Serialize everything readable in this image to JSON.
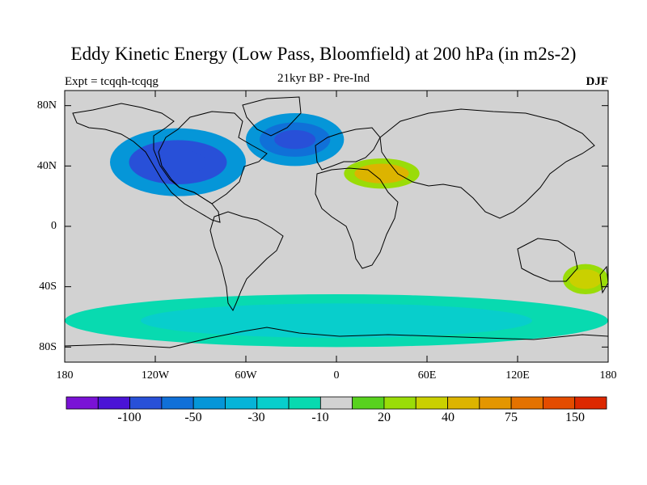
{
  "header": {
    "title": "Eddy Kinetic Energy (Low Pass, Bloomfield) at 200 hPa (in m2s-2)",
    "experiment": "Expt = tcqqh-tcqqg",
    "subtitle": "21kyr BP - Pre-Ind",
    "season": "DJF"
  },
  "chart_data": {
    "type": "heatmap",
    "projection": "cylindrical-equidistant",
    "title": "Eddy Kinetic Energy (Low Pass, Bloomfield) at 200 hPa (in m2s-2)",
    "x_axis": {
      "ticks": [
        "180",
        "120W",
        "60W",
        "0",
        "60E",
        "120E",
        "180"
      ],
      "range": [
        -180,
        180
      ]
    },
    "y_axis": {
      "ticks": [
        "80N",
        "40N",
        "0",
        "40S",
        "80S"
      ],
      "range": [
        -90,
        90
      ]
    },
    "colorbar": {
      "labels": [
        "-100",
        "-50",
        "-30",
        "-10",
        "20",
        "40",
        "75",
        "150"
      ],
      "colors": [
        "#7a12d6",
        "#4a14d6",
        "#2850d8",
        "#1070d8",
        "#0596d8",
        "#06b4d8",
        "#08cecc",
        "#08dab0",
        "#d2d2d2",
        "#58d21e",
        "#9adc08",
        "#cad000",
        "#dcb400",
        "#e49600",
        "#e47200",
        "#e44c00",
        "#dc2800"
      ]
    },
    "features": [
      {
        "name": "North Pacific / North America negative anomaly",
        "lon": [
          -150,
          -60
        ],
        "lat": [
          20,
          65
        ],
        "value": -70
      },
      {
        "name": "North Atlantic negative anomaly",
        "lon": [
          -60,
          5
        ],
        "lat": [
          40,
          75
        ],
        "value": -60
      },
      {
        "name": "Mediterranean / Middle East positive anomaly",
        "lon": [
          5,
          55
        ],
        "lat": [
          25,
          45
        ],
        "value": 40
      },
      {
        "name": "Southern Ocean negative band",
        "lon": [
          -180,
          180
        ],
        "lat": [
          -80,
          -45
        ],
        "value": -15
      },
      {
        "name": "Tasman Sea positive anomaly",
        "lon": [
          150,
          180
        ],
        "lat": [
          -45,
          -25
        ],
        "value": 30
      }
    ]
  }
}
